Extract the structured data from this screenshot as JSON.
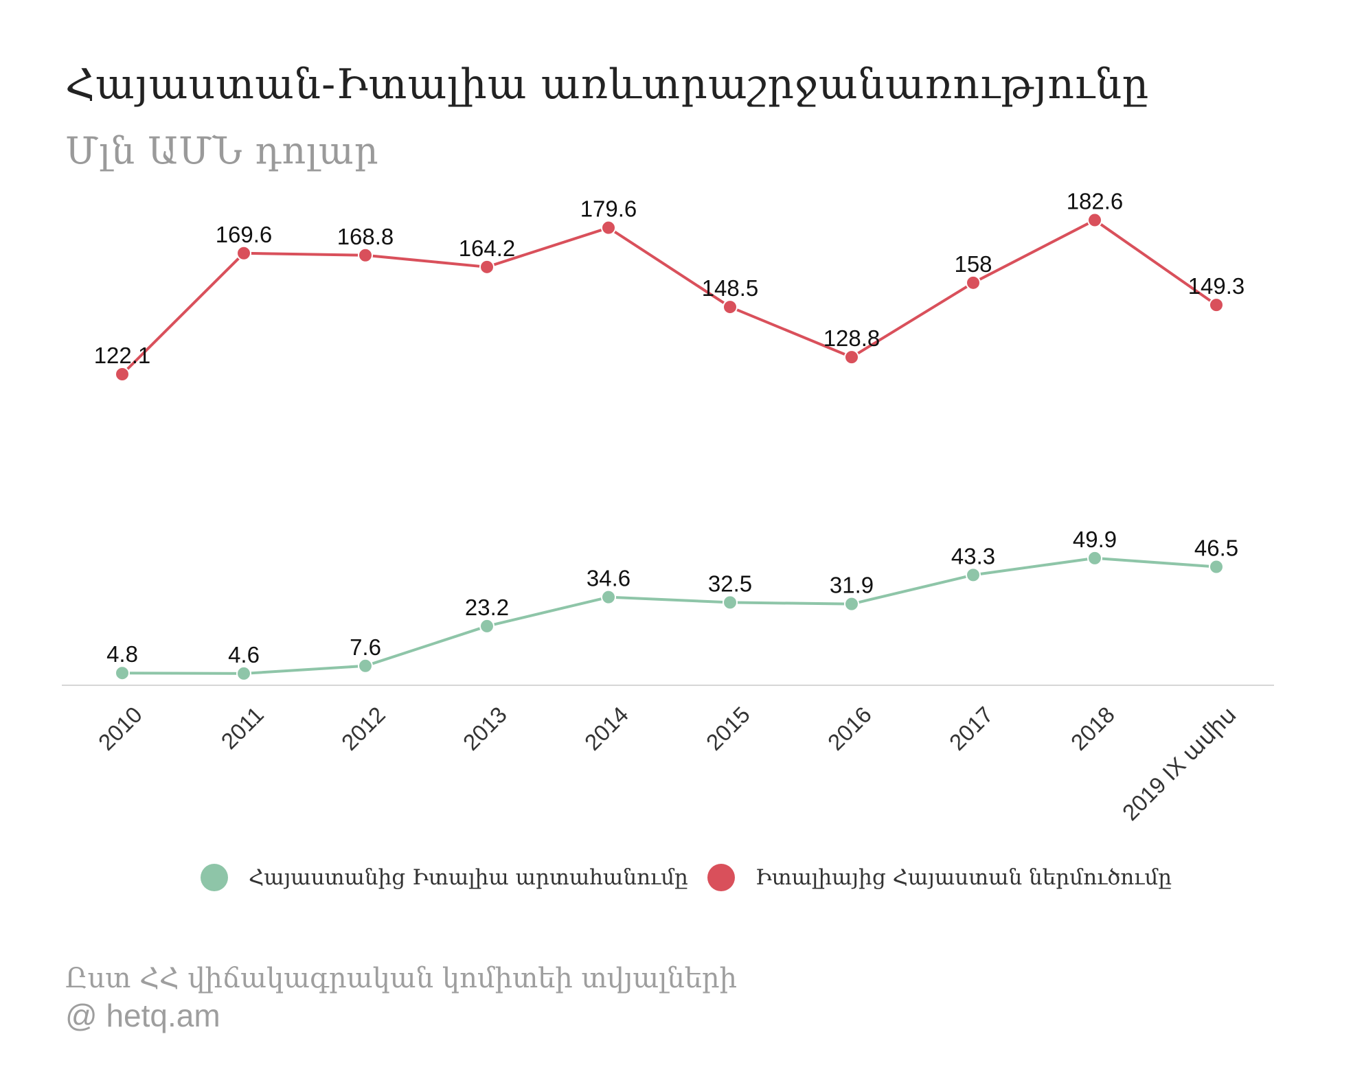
{
  "header": {
    "title": "Հայաստան-Իտալիա առևտրաշրջանառությունը",
    "subtitle": "Մլն ԱՄՆ դոլար"
  },
  "footer": {
    "source": "Ըստ ՀՀ վիճակագրական կոմիտեի տվյալների",
    "credit": "@ hetq.am"
  },
  "colors": {
    "export": "#8ec5a8",
    "import": "#d9505b",
    "axis": "#d6d6d6",
    "label": "#111111",
    "tick": "#333333"
  },
  "chart_data": {
    "type": "line",
    "categories": [
      "2010",
      "2011",
      "2012",
      "2013",
      "2014",
      "2015",
      "2016",
      "2017",
      "2018",
      "2019 IX ամիս"
    ],
    "series": [
      {
        "key": "export",
        "name": "Հայաստանից Իտալիա արտահանումը",
        "values": [
          4.8,
          4.6,
          7.6,
          23.2,
          34.6,
          32.5,
          31.9,
          43.3,
          49.9,
          46.5
        ],
        "labels": [
          "4.8",
          "4.6",
          "7.6",
          "23.2",
          "34.6",
          "32.5",
          "31.9",
          "43.3",
          "49.9",
          "46.5"
        ]
      },
      {
        "key": "import",
        "name": "Իտալիայից Հայաստան ներմուծումը",
        "values": [
          122.1,
          169.6,
          168.8,
          164.2,
          179.6,
          148.5,
          128.8,
          158,
          182.6,
          149.3
        ],
        "labels": [
          "122.1",
          "169.6",
          "168.8",
          "164.2",
          "179.6",
          "148.5",
          "128.8",
          "158",
          "182.6",
          "149.3"
        ]
      }
    ],
    "ylim": [
      0,
      200
    ],
    "grid": false,
    "legend": "bottom"
  }
}
